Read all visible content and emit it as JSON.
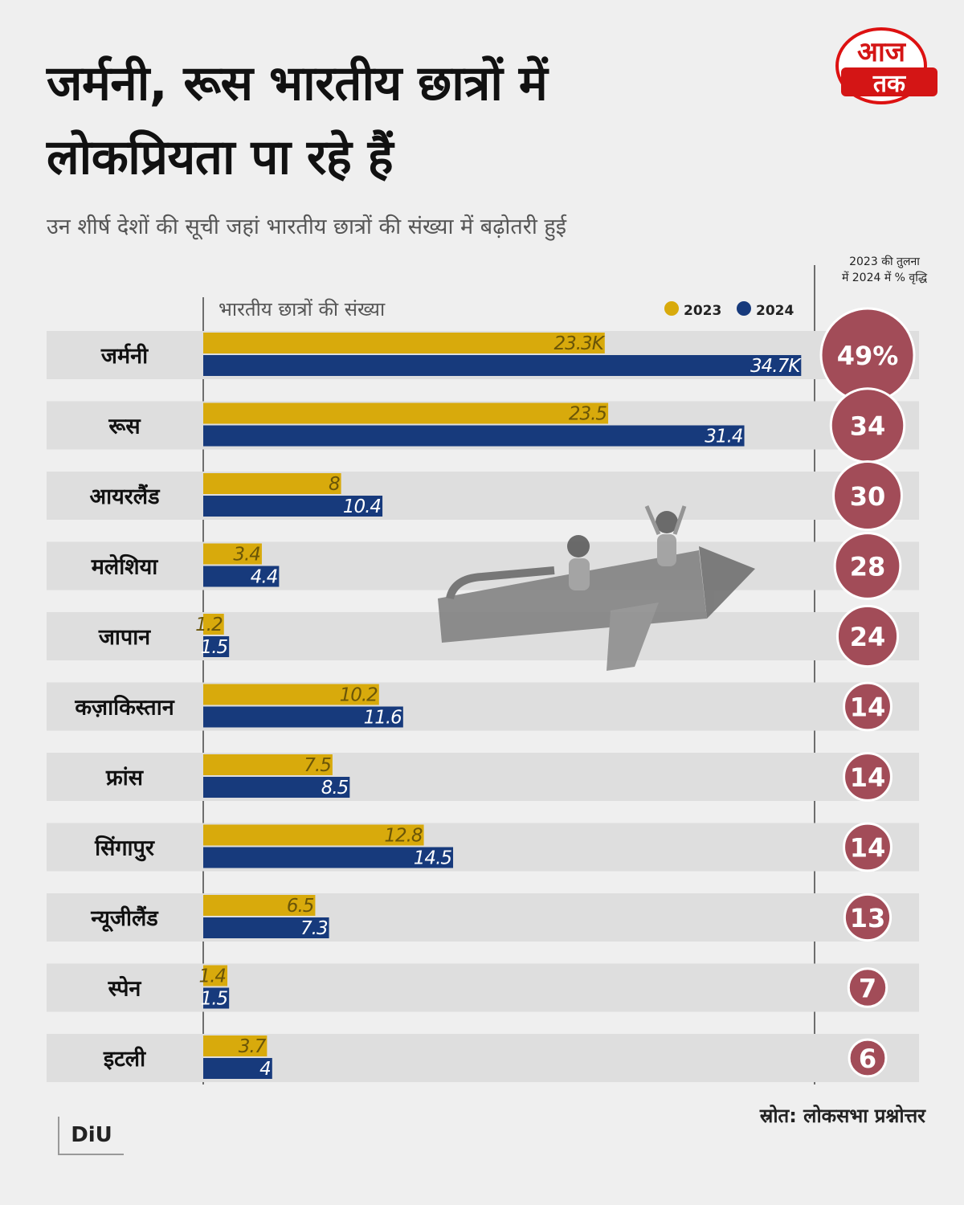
{
  "title_lines": [
    "जर्मनी, रूस भारतीय छात्रों में",
    "लोकप्रियता पा रहे हैं"
  ],
  "subtitle": "उन शीर्ष देशों की सूची जहां भारतीय छात्रों की संख्या में बढ़ोतरी हुई",
  "logo": {
    "line1": "आज",
    "line2": "तक"
  },
  "pct_header": [
    "2023 की तुलना",
    "में 2024 में % वृद्धि"
  ],
  "source": "स्रोत: लोकसभा प्रश्नोत्तर",
  "diu_logo": "DiU",
  "colors": {
    "y2023": "#d8aa0c",
    "y2024": "#173a7c",
    "circle": "#a24c58",
    "row_bg": "#dedede"
  },
  "chart_data": {
    "type": "bar",
    "orientation": "horizontal",
    "axis_label": "भारतीय छात्रों की संख्या",
    "series": [
      {
        "name": "2023",
        "values": [
          23.3,
          23.5,
          8,
          3.4,
          1.2,
          10.2,
          7.5,
          12.8,
          6.5,
          1.4,
          3.7
        ],
        "labels": [
          "23.3K",
          "23.5",
          "8",
          "3.4",
          "1.2",
          "10.2",
          "7.5",
          "12.8",
          "6.5",
          "1.4",
          "3.7"
        ]
      },
      {
        "name": "2024",
        "values": [
          34.7,
          31.4,
          10.4,
          4.4,
          1.5,
          11.6,
          8.5,
          14.5,
          7.3,
          1.5,
          4
        ],
        "labels": [
          "34.7K",
          "31.4",
          "10.4",
          "4.4",
          "1.5",
          "11.6",
          "8.5",
          "14.5",
          "7.3",
          "1.5",
          "4"
        ]
      }
    ],
    "categories": [
      "जर्मनी",
      "रूस",
      "आयरलैंड",
      "मलेशिया",
      "जापान",
      "कज़ाकिस्तान",
      "फ्रांस",
      "सिंगापुर",
      "न्यूजीलैंड",
      "स्पेन",
      "इटली"
    ],
    "growth_pct": [
      49,
      34,
      30,
      28,
      24,
      14,
      14,
      14,
      13,
      7,
      6
    ],
    "growth_labels": [
      "49%",
      "34",
      "30",
      "28",
      "24",
      "14",
      "14",
      "14",
      "13",
      "7",
      "6"
    ],
    "legend_position": "top-right",
    "grid": false
  }
}
